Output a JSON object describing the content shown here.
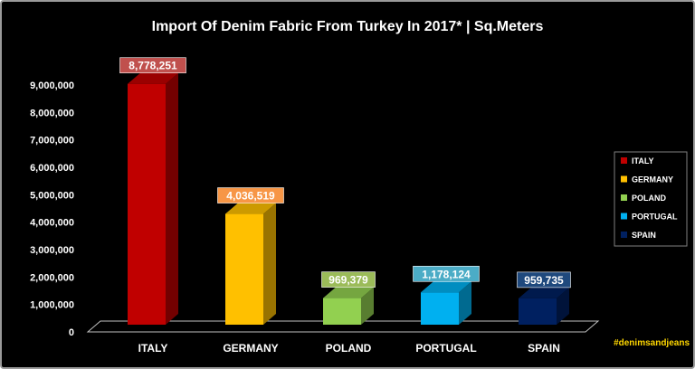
{
  "chart_data": {
    "type": "bar",
    "title": "Import Of Denim Fabric From Turkey In 2017* | Sq.Meters",
    "categories": [
      "ITALY",
      "GERMANY",
      "POLAND",
      "PORTUGAL",
      "SPAIN"
    ],
    "values": [
      8778251,
      4036519,
      969379,
      1178124,
      959735
    ],
    "value_labels": [
      "8,778,251",
      "4,036,519",
      "969,379",
      "1,178,124",
      "959,735"
    ],
    "colors": [
      "#c00000",
      "#ffc000",
      "#92d050",
      "#00b0f0",
      "#002060"
    ],
    "label_colors": [
      "#c0504d",
      "#f79646",
      "#9bbb59",
      "#4bacc6",
      "#1f497d"
    ],
    "ylim": [
      0,
      9000000
    ],
    "yticks": [
      "0",
      "1,000,000",
      "2,000,000",
      "3,000,000",
      "4,000,000",
      "5,000,000",
      "6,000,000",
      "7,000,000",
      "8,000,000",
      "9,000,000"
    ],
    "legend": [
      "ITALY",
      "GERMANY",
      "POLAND",
      "PORTUGAL",
      "SPAIN"
    ],
    "legend_position": "right",
    "grid": false,
    "style": "3d-column"
  },
  "watermark": "#denimsandjeans"
}
